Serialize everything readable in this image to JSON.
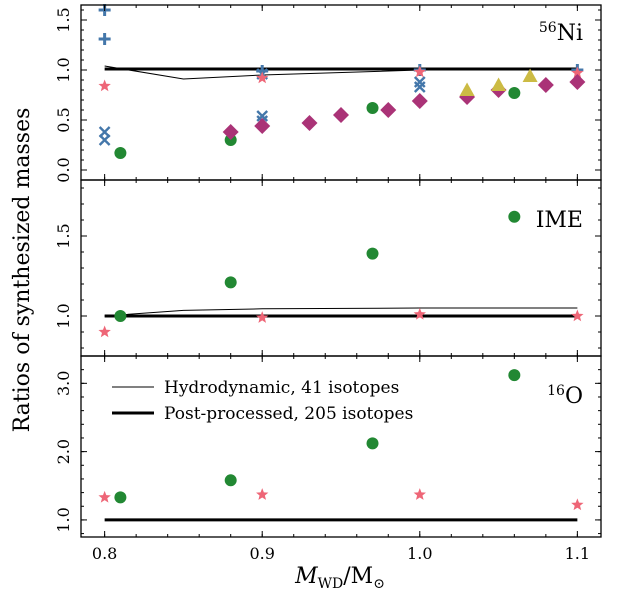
{
  "figure": {
    "ylabel": "Ratios of synthesized masses",
    "xlabel_main": "M",
    "xlabel_sub1": "WD",
    "xlabel_slash": "/M",
    "xlabel_sub2": "⊙"
  },
  "legend": {
    "items": [
      {
        "label": "Hydrodynamic, 41 isotopes",
        "style": "thin-line"
      },
      {
        "label": "Post-processed, 205 isotopes",
        "style": "thick-line"
      }
    ],
    "placement": "upper-left of bottom panel"
  },
  "colors": {
    "thin_line": "#000000",
    "thick_line": "#000000",
    "plus": "#4477aa",
    "x": "#4477aa",
    "star": "#ee6677",
    "circle": "#228833",
    "diamond": "#aa3377",
    "triangle": "#ccbb44"
  },
  "chart_data": [
    {
      "type": "scatter",
      "panel": "top",
      "title_sup": "56",
      "title_main": "Ni",
      "xlim": [
        0.785,
        1.115
      ],
      "ylim": [
        -0.1,
        1.65
      ],
      "yticks": [
        0.0,
        0.5,
        1.0,
        1.5
      ],
      "ytick_labels": [
        "0.0",
        "0.5",
        "1.0",
        "1.5"
      ],
      "xticks": [
        0.8,
        0.9,
        1.0,
        1.1
      ],
      "grid": false,
      "lines": [
        {
          "style": "thin",
          "x": [
            0.8,
            0.85,
            0.9,
            1.0,
            1.1
          ],
          "y": [
            1.04,
            0.91,
            0.95,
            1.0,
            1.01
          ]
        },
        {
          "style": "thick",
          "x": [
            0.8,
            1.1
          ],
          "y": [
            1.01,
            1.01
          ]
        }
      ],
      "series": [
        {
          "marker": "plus",
          "points": [
            [
              0.8,
              1.6
            ],
            [
              0.8,
              1.31
            ],
            [
              0.9,
              0.99
            ],
            [
              1.0,
              1.0
            ],
            [
              1.1,
              1.0
            ]
          ]
        },
        {
          "marker": "x",
          "points": [
            [
              0.8,
              0.38
            ],
            [
              0.8,
              0.3
            ],
            [
              0.9,
              0.96
            ],
            [
              0.9,
              0.54
            ],
            [
              0.9,
              0.49
            ],
            [
              1.0,
              0.88
            ],
            [
              1.0,
              0.83
            ]
          ]
        },
        {
          "marker": "star",
          "points": [
            [
              0.8,
              0.84
            ],
            [
              0.9,
              0.92
            ],
            [
              1.0,
              0.98
            ],
            [
              1.1,
              0.97
            ]
          ]
        },
        {
          "marker": "circle",
          "points": [
            [
              0.81,
              0.17
            ],
            [
              0.88,
              0.3
            ],
            [
              0.97,
              0.62
            ],
            [
              1.06,
              0.77
            ]
          ]
        },
        {
          "marker": "diamond",
          "points": [
            [
              0.88,
              0.38
            ],
            [
              0.9,
              0.44
            ],
            [
              0.93,
              0.47
            ],
            [
              0.95,
              0.55
            ],
            [
              0.98,
              0.6
            ],
            [
              1.0,
              0.69
            ],
            [
              1.03,
              0.73
            ],
            [
              1.05,
              0.8
            ],
            [
              1.08,
              0.85
            ],
            [
              1.1,
              0.88
            ]
          ]
        },
        {
          "marker": "triangle",
          "points": [
            [
              1.03,
              0.8
            ],
            [
              1.05,
              0.85
            ],
            [
              1.07,
              0.94
            ]
          ]
        }
      ]
    },
    {
      "type": "scatter",
      "panel": "middle",
      "title_main": "IME",
      "xlim": [
        0.785,
        1.115
      ],
      "ylim": [
        0.75,
        1.85
      ],
      "yticks": [
        1.0,
        1.5
      ],
      "ytick_labels": [
        "1.0",
        "1.5"
      ],
      "xticks": [
        0.8,
        0.9,
        1.0,
        1.1
      ],
      "grid": false,
      "lines": [
        {
          "style": "thin",
          "x": [
            0.8,
            0.85,
            0.9,
            1.0,
            1.1
          ],
          "y": [
            1.0,
            1.035,
            1.045,
            1.05,
            1.05
          ]
        },
        {
          "style": "thick",
          "x": [
            0.8,
            1.1
          ],
          "y": [
            1.0,
            1.0
          ]
        }
      ],
      "series": [
        {
          "marker": "star",
          "points": [
            [
              0.8,
              0.9
            ],
            [
              0.9,
              0.99
            ],
            [
              1.0,
              1.01
            ],
            [
              1.1,
              1.0
            ]
          ]
        },
        {
          "marker": "circle",
          "points": [
            [
              0.81,
              1.0
            ],
            [
              0.88,
              1.21
            ],
            [
              0.97,
              1.39
            ],
            [
              1.06,
              1.62
            ]
          ]
        }
      ]
    },
    {
      "type": "scatter",
      "panel": "bottom",
      "title_sup": "16",
      "title_main": "O",
      "xlim": [
        0.785,
        1.115
      ],
      "ylim": [
        0.75,
        3.4
      ],
      "yticks": [
        1.0,
        2.0,
        3.0
      ],
      "ytick_labels": [
        "1.0",
        "2.0",
        "3.0"
      ],
      "xticks": [
        0.8,
        0.9,
        1.0,
        1.1
      ],
      "xtick_labels": [
        "0.8",
        "0.9",
        "1.0",
        "1.1"
      ],
      "grid": false,
      "lines": [
        {
          "style": "thick",
          "x": [
            0.8,
            1.1
          ],
          "y": [
            1.0,
            1.0
          ]
        }
      ],
      "series": [
        {
          "marker": "star",
          "points": [
            [
              0.8,
              1.33
            ],
            [
              0.9,
              1.37
            ],
            [
              1.0,
              1.37
            ],
            [
              1.1,
              1.22
            ]
          ]
        },
        {
          "marker": "circle",
          "points": [
            [
              0.81,
              1.33
            ],
            [
              0.88,
              1.58
            ],
            [
              0.97,
              2.12
            ],
            [
              1.06,
              3.12
            ]
          ]
        }
      ]
    }
  ]
}
